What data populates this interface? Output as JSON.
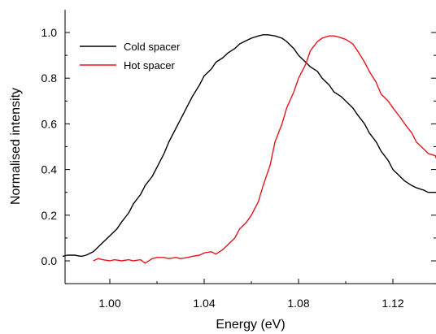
{
  "chart_data": {
    "type": "line",
    "title": "",
    "xlabel": "Energy (eV)",
    "ylabel": "Normalised intensity",
    "xlim": [
      0.98,
      1.14
    ],
    "ylim": [
      -0.1,
      1.1
    ],
    "x_ticks": [
      1.0,
      1.04,
      1.08,
      1.12
    ],
    "x_tick_labels": [
      "1.00",
      "1.04",
      "1.08",
      "1.12"
    ],
    "y_ticks": [
      0.0,
      0.2,
      0.4,
      0.6,
      0.8,
      1.0
    ],
    "y_tick_labels": [
      "0.0",
      "0.2",
      "0.4",
      "0.6",
      "0.8",
      "1.0"
    ],
    "grid": false,
    "legend_position": "top-left",
    "series": [
      {
        "name": "Cold spacer",
        "color": "#000000",
        "x": [
          0.98,
          0.982,
          0.985,
          0.988,
          0.99,
          0.993,
          0.995,
          0.998,
          1.0,
          1.003,
          1.005,
          1.008,
          1.01,
          1.013,
          1.015,
          1.018,
          1.02,
          1.023,
          1.025,
          1.028,
          1.03,
          1.033,
          1.035,
          1.038,
          1.04,
          1.043,
          1.045,
          1.048,
          1.05,
          1.053,
          1.055,
          1.058,
          1.06,
          1.063,
          1.065,
          1.067,
          1.07,
          1.073,
          1.075,
          1.078,
          1.08,
          1.083,
          1.085,
          1.088,
          1.09,
          1.093,
          1.095,
          1.098,
          1.1,
          1.103,
          1.105,
          1.108,
          1.11,
          1.113,
          1.115,
          1.118,
          1.12,
          1.123,
          1.125,
          1.128,
          1.13,
          1.133,
          1.135,
          1.138,
          1.14
        ],
        "y": [
          0.02,
          0.025,
          0.025,
          0.02,
          0.025,
          0.04,
          0.06,
          0.09,
          0.11,
          0.14,
          0.17,
          0.21,
          0.25,
          0.29,
          0.33,
          0.37,
          0.41,
          0.47,
          0.52,
          0.58,
          0.62,
          0.68,
          0.72,
          0.77,
          0.81,
          0.84,
          0.87,
          0.89,
          0.91,
          0.93,
          0.95,
          0.965,
          0.975,
          0.985,
          0.99,
          0.99,
          0.985,
          0.975,
          0.96,
          0.93,
          0.9,
          0.87,
          0.85,
          0.83,
          0.8,
          0.77,
          0.74,
          0.72,
          0.7,
          0.67,
          0.64,
          0.6,
          0.56,
          0.52,
          0.48,
          0.44,
          0.4,
          0.37,
          0.35,
          0.33,
          0.32,
          0.31,
          0.3,
          0.3,
          0.3
        ]
      },
      {
        "name": "Hot spacer",
        "color": "#e8141b",
        "x": [
          0.993,
          0.995,
          0.997,
          1.0,
          1.002,
          1.005,
          1.008,
          1.01,
          1.013,
          1.015,
          1.018,
          1.02,
          1.023,
          1.025,
          1.028,
          1.03,
          1.033,
          1.035,
          1.038,
          1.04,
          1.043,
          1.045,
          1.048,
          1.05,
          1.053,
          1.055,
          1.058,
          1.06,
          1.063,
          1.065,
          1.068,
          1.07,
          1.073,
          1.075,
          1.078,
          1.08,
          1.083,
          1.085,
          1.088,
          1.09,
          1.093,
          1.095,
          1.097,
          1.1,
          1.103,
          1.105,
          1.108,
          1.11,
          1.113,
          1.115,
          1.118,
          1.12,
          1.123,
          1.125,
          1.128,
          1.13,
          1.133,
          1.135,
          1.138,
          1.14
        ],
        "y": [
          0.0,
          0.01,
          0.005,
          0.0,
          0.005,
          0.0,
          0.005,
          0.0,
          0.005,
          -0.01,
          0.01,
          0.015,
          0.015,
          0.01,
          0.015,
          0.01,
          0.015,
          0.02,
          0.025,
          0.035,
          0.04,
          0.03,
          0.05,
          0.07,
          0.1,
          0.14,
          0.17,
          0.2,
          0.26,
          0.33,
          0.42,
          0.52,
          0.6,
          0.67,
          0.74,
          0.8,
          0.86,
          0.92,
          0.96,
          0.975,
          0.985,
          0.985,
          0.98,
          0.97,
          0.95,
          0.92,
          0.87,
          0.83,
          0.78,
          0.73,
          0.7,
          0.67,
          0.63,
          0.6,
          0.56,
          0.52,
          0.49,
          0.47,
          0.46,
          0.45
        ]
      }
    ]
  }
}
